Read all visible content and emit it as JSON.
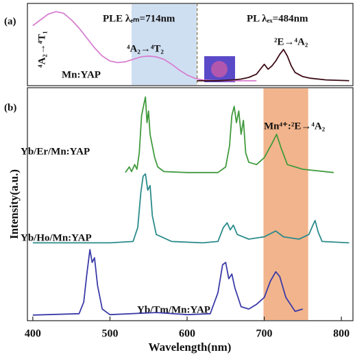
{
  "chart_data": [
    {
      "type": "line",
      "panel": "(a)",
      "xlim": [
        393,
        815
      ],
      "ylim": [
        0,
        100
      ],
      "shaded": {
        "xrange": [
          528,
          613
        ],
        "color": "#cfdff2"
      },
      "vline": 613,
      "annotations": [
        "⁴A₂→⁴T₁",
        "⁴A₂→⁴T₂",
        "²E→⁴A₂",
        "Mn:YAP"
      ],
      "series": [
        {
          "name": "PLE λₑₘ=714nm",
          "color": "#d77fd0",
          "x": [
            400,
            410,
            420,
            430,
            440,
            450,
            460,
            470,
            480,
            490,
            500,
            510,
            520,
            530,
            540,
            550,
            560,
            570,
            580,
            590,
            600,
            610,
            620,
            640,
            660,
            690
          ],
          "values": [
            73,
            80,
            87,
            90,
            88,
            80,
            70,
            58,
            46,
            36,
            30,
            28,
            29,
            32,
            35,
            36,
            35,
            32,
            26,
            19,
            13,
            9,
            7,
            6,
            6,
            6
          ]
        },
        {
          "name": "PL λₑₓ=484nm",
          "color": "#3a0a14",
          "x": [
            613,
            640,
            660,
            670,
            680,
            690,
            695,
            700,
            705,
            710,
            715,
            720,
            725,
            730,
            735,
            740,
            750,
            760,
            780,
            810
          ],
          "values": [
            6,
            6,
            7,
            8,
            10,
            14,
            20,
            26,
            20,
            24,
            30,
            38,
            44,
            36,
            24,
            16,
            11,
            9,
            7,
            6
          ]
        }
      ]
    },
    {
      "type": "line",
      "panel": "(b)",
      "xlim": [
        393,
        815
      ],
      "ylim": [
        0,
        100
      ],
      "xticks": [
        400,
        500,
        600,
        700,
        800
      ],
      "xlabel": "Wavelength(nm)",
      "ylabel": "Intensity(a.u.)",
      "shaded": {
        "xrange": [
          699,
          757
        ],
        "color": "#f2b48c"
      },
      "annotations": [
        "Mn⁴⁺:²E→⁴A₂"
      ],
      "series": [
        {
          "name": "Yb/Er/Mn:YAP",
          "color": "#3f9a3c",
          "x": [
            520,
            525,
            528,
            532,
            535,
            538,
            541,
            544,
            546,
            548,
            550,
            552,
            555,
            558,
            562,
            570,
            600,
            640,
            650,
            655,
            658,
            661,
            664,
            667,
            670,
            673,
            676,
            680,
            690,
            700,
            710,
            716,
            722,
            730,
            750,
            790
          ],
          "values": [
            63.6,
            66,
            64,
            67,
            65,
            72,
            88,
            93,
            96,
            85,
            90,
            80,
            75,
            70,
            66,
            64,
            63.6,
            63.6,
            66,
            75,
            88,
            92,
            85,
            90,
            80,
            86,
            72,
            68,
            67,
            70,
            76,
            80,
            74,
            67,
            65,
            63.6
          ]
        },
        {
          "name": "Yb/Ho/Mn:YAP",
          "color": "#2a8a8a",
          "x": [
            400,
            500,
            530,
            536,
            540,
            543,
            546,
            549,
            552,
            555,
            560,
            580,
            620,
            640,
            647,
            652,
            656,
            660,
            665,
            680,
            700,
            715,
            725,
            745,
            758,
            763,
            766,
            770,
            775,
            810
          ],
          "values": [
            33.4,
            33.4,
            34,
            40,
            55,
            62,
            63,
            56,
            58,
            45,
            37,
            34,
            33.4,
            34,
            40,
            42,
            39,
            41,
            37,
            35,
            36,
            38.5,
            36,
            35,
            37,
            41,
            43,
            38,
            34,
            33.4
          ]
        },
        {
          "name": "Yb/Tm/Mn:YAP",
          "color": "#3a3aa8",
          "x": [
            400,
            460,
            466,
            470,
            474,
            477,
            480,
            484,
            490,
            500,
            560,
            600,
            630,
            640,
            646,
            650,
            654,
            658,
            662,
            670,
            680,
            690,
            700,
            708,
            715,
            720,
            728,
            740,
            750
          ],
          "values": [
            2.4,
            3,
            8,
            20,
            30.5,
            25,
            27,
            15,
            5,
            2.6,
            3.5,
            2.6,
            3,
            12,
            24,
            25,
            18,
            20,
            14,
            6,
            5,
            7,
            10,
            17,
            21,
            19,
            10,
            4,
            5
          ]
        }
      ]
    }
  ]
}
